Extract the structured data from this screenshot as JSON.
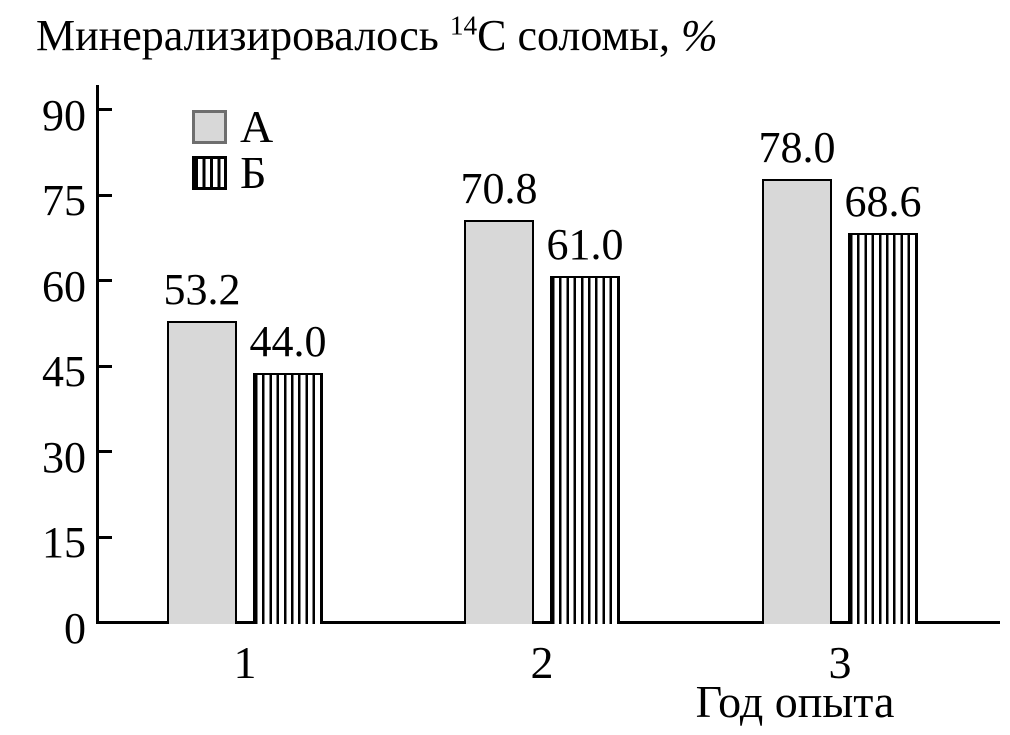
{
  "figure": {
    "background": "#ffffff"
  },
  "title": {
    "full_text": "Минерализировалось ¹⁴C соломы, %",
    "before_sup": "Минерализировалось ",
    "sup": "14",
    "after_sup": "C соломы, ",
    "unit": "%"
  },
  "chart_data": {
    "type": "bar",
    "title": "Минерализировалось ¹⁴C соломы, %",
    "xlabel": "Год опыта",
    "ylabel": "",
    "ylim": [
      0,
      90
    ],
    "yticks": [
      0,
      15,
      30,
      45,
      60,
      75,
      90
    ],
    "categories": [
      "1",
      "2",
      "3"
    ],
    "series": [
      {
        "key": "a",
        "name": "А",
        "pattern": "solid",
        "fill": "#d8d8d8",
        "values": [
          53.2,
          70.8,
          78.0
        ],
        "value_labels": [
          "53.2",
          "70.8",
          "78.0"
        ]
      },
      {
        "key": "b",
        "name": "Б",
        "pattern": "vertical-stripes",
        "fill": "#ffffff",
        "stripe_color": "#000000",
        "values": [
          44.0,
          61.0,
          68.6
        ],
        "value_labels": [
          "44.0",
          "61.0",
          "68.6"
        ]
      }
    ],
    "legend_position": "upper-left-inside",
    "grid": false,
    "axis_color": "#000000",
    "background_color": "#ffffff"
  }
}
